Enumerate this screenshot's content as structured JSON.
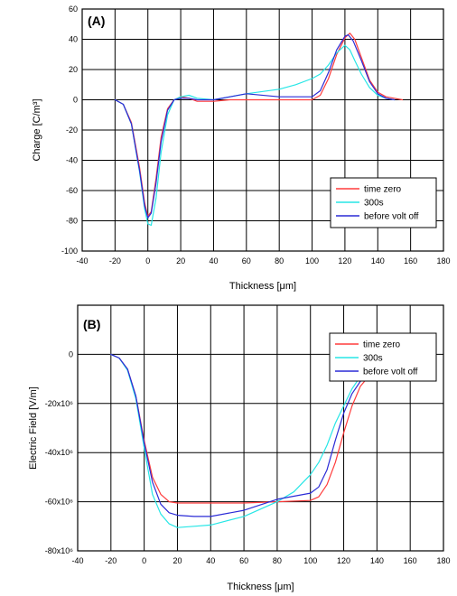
{
  "chart_data": [
    {
      "type": "line",
      "panel_label": "(A)",
      "xlabel": "Thickness [μm]",
      "ylabel": "Charge [C/m³]",
      "xlim": [
        -40,
        180
      ],
      "ylim": [
        -100,
        60
      ],
      "xticks": [
        -40,
        -20,
        0,
        20,
        40,
        60,
        80,
        100,
        120,
        140,
        160,
        180
      ],
      "yticks": [
        -100,
        -80,
        -60,
        -40,
        -20,
        0,
        20,
        40,
        60
      ],
      "ytick_labels": [
        "-100",
        "-80",
        "-60",
        "-40",
        "-20",
        "0",
        "20",
        "40",
        "60"
      ],
      "grid": true,
      "legend_position": "bottom-right",
      "series": [
        {
          "name": "time zero",
          "color": "#ff3b3b",
          "points": [
            [
              -20,
              0
            ],
            [
              -15,
              -3
            ],
            [
              -10,
              -15
            ],
            [
              -5,
              -45
            ],
            [
              -2,
              -68
            ],
            [
              0,
              -77
            ],
            [
              2,
              -74
            ],
            [
              5,
              -52
            ],
            [
              8,
              -25
            ],
            [
              12,
              -6
            ],
            [
              16,
              0
            ],
            [
              20,
              2
            ],
            [
              25,
              1
            ],
            [
              30,
              -1
            ],
            [
              40,
              -1
            ],
            [
              50,
              0
            ],
            [
              60,
              0
            ],
            [
              80,
              0
            ],
            [
              100,
              0
            ],
            [
              105,
              3
            ],
            [
              110,
              14
            ],
            [
              115,
              30
            ],
            [
              120,
              41
            ],
            [
              123,
              44
            ],
            [
              126,
              40
            ],
            [
              130,
              28
            ],
            [
              135,
              13
            ],
            [
              140,
              5
            ],
            [
              145,
              2
            ],
            [
              150,
              1
            ],
            [
              155,
              0
            ]
          ]
        },
        {
          "name": "300s",
          "color": "#27e6e6",
          "points": [
            [
              -20,
              0
            ],
            [
              -15,
              -3
            ],
            [
              -10,
              -16
            ],
            [
              -5,
              -48
            ],
            [
              -2,
              -72
            ],
            [
              0,
              -82
            ],
            [
              2,
              -83
            ],
            [
              5,
              -65
            ],
            [
              8,
              -35
            ],
            [
              12,
              -10
            ],
            [
              16,
              0
            ],
            [
              20,
              2
            ],
            [
              25,
              3
            ],
            [
              30,
              1
            ],
            [
              40,
              0
            ],
            [
              50,
              2
            ],
            [
              60,
              4
            ],
            [
              80,
              7
            ],
            [
              90,
              10
            ],
            [
              100,
              14
            ],
            [
              105,
              17
            ],
            [
              110,
              23
            ],
            [
              115,
              31
            ],
            [
              120,
              36
            ],
            [
              123,
              33
            ],
            [
              126,
              26
            ],
            [
              130,
              17
            ],
            [
              135,
              8
            ],
            [
              140,
              3
            ],
            [
              145,
              1
            ],
            [
              150,
              0
            ]
          ]
        },
        {
          "name": "before volt off",
          "color": "#2b2bd6",
          "points": [
            [
              -20,
              0
            ],
            [
              -15,
              -3
            ],
            [
              -10,
              -16
            ],
            [
              -5,
              -47
            ],
            [
              -2,
              -70
            ],
            [
              0,
              -78
            ],
            [
              2,
              -75
            ],
            [
              5,
              -55
            ],
            [
              8,
              -28
            ],
            [
              12,
              -7
            ],
            [
              16,
              0
            ],
            [
              20,
              1
            ],
            [
              25,
              1
            ],
            [
              30,
              0
            ],
            [
              40,
              0
            ],
            [
              50,
              2
            ],
            [
              60,
              4
            ],
            [
              80,
              2
            ],
            [
              100,
              2
            ],
            [
              105,
              6
            ],
            [
              110,
              18
            ],
            [
              115,
              33
            ],
            [
              120,
              42
            ],
            [
              122,
              43
            ],
            [
              125,
              39
            ],
            [
              130,
              26
            ],
            [
              135,
              12
            ],
            [
              140,
              4
            ],
            [
              145,
              1
            ],
            [
              150,
              0
            ]
          ]
        }
      ]
    },
    {
      "type": "line",
      "panel_label": "(B)",
      "xlabel": "Thickness [μm]",
      "ylabel": "Electric Field [V/m]",
      "xlim": [
        -40,
        180
      ],
      "ylim": [
        -80000000,
        20000000
      ],
      "xticks": [
        -40,
        -20,
        0,
        20,
        40,
        60,
        80,
        100,
        120,
        140,
        160,
        180
      ],
      "yticks": [
        -80000000,
        -60000000,
        -40000000,
        -20000000,
        0
      ],
      "ytick_labels": [
        "-80x10⁶",
        "-60x10⁶",
        "-40x10⁶",
        "-20x10⁶",
        "0"
      ],
      "grid": true,
      "legend_position": "top-right",
      "series": [
        {
          "name": "time zero",
          "color": "#ff3b3b",
          "points": [
            [
              -20,
              0
            ],
            [
              -15,
              -1500000
            ],
            [
              -10,
              -6000000
            ],
            [
              -5,
              -17000000
            ],
            [
              0,
              -35000000
            ],
            [
              5,
              -50000000
            ],
            [
              10,
              -57000000
            ],
            [
              15,
              -60000000
            ],
            [
              20,
              -60500000
            ],
            [
              40,
              -60500000
            ],
            [
              60,
              -60500000
            ],
            [
              80,
              -60000000
            ],
            [
              100,
              -59500000
            ],
            [
              105,
              -58000000
            ],
            [
              110,
              -53000000
            ],
            [
              115,
              -44000000
            ],
            [
              120,
              -32000000
            ],
            [
              125,
              -21000000
            ],
            [
              130,
              -13000000
            ],
            [
              135,
              -9000000
            ]
          ]
        },
        {
          "name": "300s",
          "color": "#27e6e6",
          "points": [
            [
              -20,
              0
            ],
            [
              -15,
              -1500000
            ],
            [
              -10,
              -6500000
            ],
            [
              -5,
              -18000000
            ],
            [
              0,
              -38000000
            ],
            [
              5,
              -57000000
            ],
            [
              10,
              -65000000
            ],
            [
              15,
              -69000000
            ],
            [
              20,
              -70500000
            ],
            [
              30,
              -70000000
            ],
            [
              40,
              -69500000
            ],
            [
              60,
              -66000000
            ],
            [
              80,
              -60000000
            ],
            [
              90,
              -56000000
            ],
            [
              100,
              -49000000
            ],
            [
              105,
              -44000000
            ],
            [
              110,
              -37000000
            ],
            [
              115,
              -28000000
            ],
            [
              120,
              -21000000
            ],
            [
              125,
              -14000000
            ],
            [
              130,
              -9000000
            ]
          ]
        },
        {
          "name": "before volt off",
          "color": "#2b2bd6",
          "points": [
            [
              -20,
              0
            ],
            [
              -15,
              -1500000
            ],
            [
              -10,
              -6000000
            ],
            [
              -5,
              -17000000
            ],
            [
              0,
              -36000000
            ],
            [
              5,
              -52000000
            ],
            [
              10,
              -61000000
            ],
            [
              15,
              -64500000
            ],
            [
              20,
              -65500000
            ],
            [
              30,
              -66000000
            ],
            [
              40,
              -66000000
            ],
            [
              60,
              -63500000
            ],
            [
              80,
              -59000000
            ],
            [
              100,
              -56500000
            ],
            [
              105,
              -54000000
            ],
            [
              110,
              -47000000
            ],
            [
              115,
              -35000000
            ],
            [
              120,
              -24000000
            ],
            [
              125,
              -16000000
            ],
            [
              130,
              -11000000
            ],
            [
              135,
              -8000000
            ]
          ]
        }
      ]
    }
  ]
}
